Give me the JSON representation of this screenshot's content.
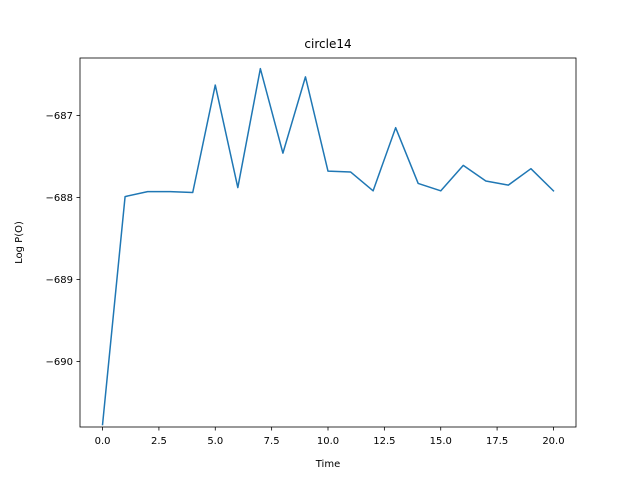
{
  "chart_data": {
    "type": "line",
    "title": "circle14",
    "xlabel": "Time",
    "ylabel": "Log P(O)",
    "xlim": [
      -1.0,
      21.0
    ],
    "ylim": [
      -690.8,
      -686.3
    ],
    "xticks": [
      {
        "value": 0.0,
        "label": "0.0"
      },
      {
        "value": 2.5,
        "label": "2.5"
      },
      {
        "value": 5.0,
        "label": "5.0"
      },
      {
        "value": 7.5,
        "label": "7.5"
      },
      {
        "value": 10.0,
        "label": "10.0"
      },
      {
        "value": 12.5,
        "label": "12.5"
      },
      {
        "value": 15.0,
        "label": "15.0"
      },
      {
        "value": 17.5,
        "label": "17.5"
      },
      {
        "value": 20.0,
        "label": "20.0"
      }
    ],
    "yticks": [
      {
        "value": -690,
        "label": "−690"
      },
      {
        "value": -689,
        "label": "−689"
      },
      {
        "value": -688,
        "label": "−688"
      },
      {
        "value": -687,
        "label": "−687"
      }
    ],
    "grid": false,
    "series": [
      {
        "color": "#1f77b4",
        "x": [
          0,
          1,
          2,
          3,
          4,
          5,
          6,
          7,
          8,
          9,
          10,
          11,
          12,
          13,
          14,
          15,
          16,
          17,
          18,
          19,
          20
        ],
        "y": [
          -690.77,
          -687.99,
          -687.93,
          -687.93,
          -687.94,
          -686.63,
          -687.88,
          -686.43,
          -687.46,
          -686.53,
          -687.68,
          -687.69,
          -687.92,
          -687.15,
          -687.83,
          -687.92,
          -687.61,
          -687.8,
          -687.85,
          -687.65,
          -687.92
        ]
      }
    ]
  }
}
